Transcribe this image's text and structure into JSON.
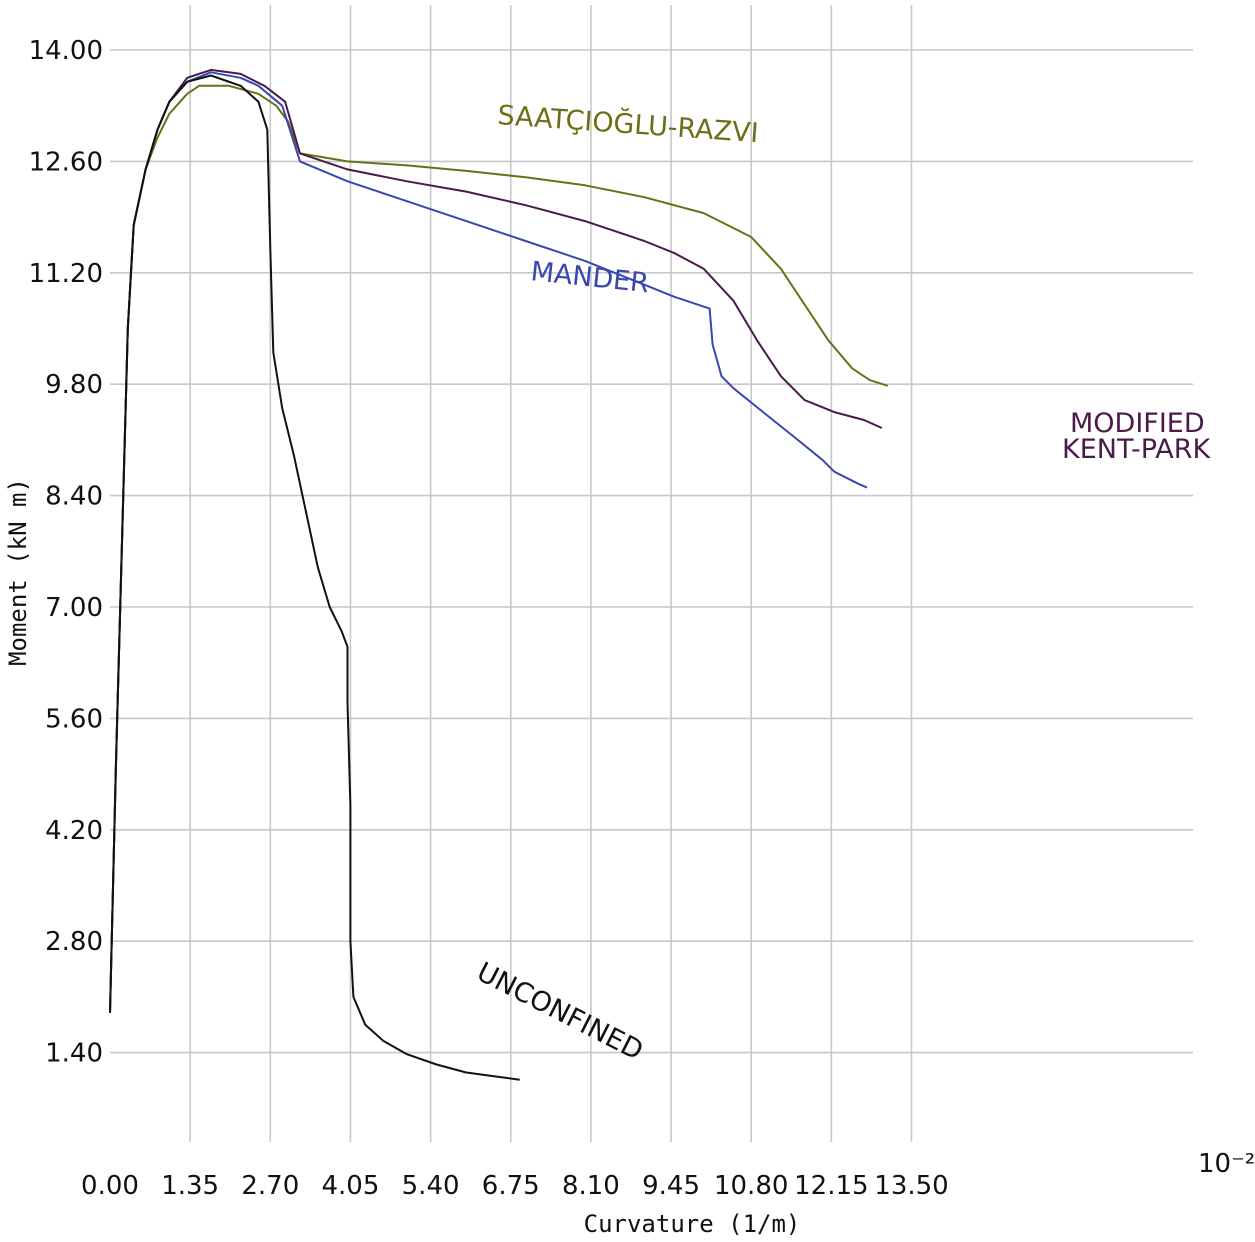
{
  "chart_data": {
    "type": "line",
    "xlabel": "Curvature (1/m)",
    "ylabel": "Moment (kN m)",
    "x_multiplier": "10⁻²",
    "xlim": [
      0,
      13.5
    ],
    "ylim": [
      0,
      14
    ],
    "grid": true,
    "x_ticks": [
      "0.00",
      "1.35",
      "2.70",
      "4.05",
      "5.40",
      "6.75",
      "8.10",
      "9.45",
      "10.80",
      "12.15",
      "13.50"
    ],
    "y_ticks": [
      "1.40",
      "2.80",
      "4.20",
      "5.60",
      "7.00",
      "8.40",
      "9.80",
      "11.20",
      "12.60",
      "14.00"
    ],
    "series": [
      {
        "name": "SAATÇIOĞLU-RAZVI",
        "color": "#6e6e16",
        "points": [
          [
            0,
            1.9
          ],
          [
            0.1,
            5.0
          ],
          [
            0.3,
            10.5
          ],
          [
            0.4,
            11.8
          ],
          [
            0.6,
            12.5
          ],
          [
            0.8,
            12.9
          ],
          [
            1.0,
            13.2
          ],
          [
            1.3,
            13.45
          ],
          [
            1.5,
            13.55
          ],
          [
            2.0,
            13.55
          ],
          [
            2.5,
            13.45
          ],
          [
            2.8,
            13.3
          ],
          [
            3.0,
            13.1
          ],
          [
            3.2,
            12.7
          ],
          [
            4.0,
            12.6
          ],
          [
            5.0,
            12.55
          ],
          [
            6.0,
            12.48
          ],
          [
            7.0,
            12.4
          ],
          [
            8.0,
            12.3
          ],
          [
            9.0,
            12.15
          ],
          [
            10.0,
            11.95
          ],
          [
            10.8,
            11.65
          ],
          [
            11.3,
            11.25
          ],
          [
            11.7,
            10.8
          ],
          [
            12.1,
            10.35
          ],
          [
            12.5,
            10.0
          ],
          [
            12.8,
            9.85
          ],
          [
            13.1,
            9.78
          ]
        ]
      },
      {
        "name": "MODIFIED KENT-PARK",
        "color": "#4a1a4a",
        "points": [
          [
            0,
            1.9
          ],
          [
            0.1,
            5.0
          ],
          [
            0.3,
            10.5
          ],
          [
            0.4,
            11.8
          ],
          [
            0.6,
            12.5
          ],
          [
            0.8,
            13.0
          ],
          [
            1.0,
            13.35
          ],
          [
            1.3,
            13.65
          ],
          [
            1.7,
            13.75
          ],
          [
            2.2,
            13.7
          ],
          [
            2.6,
            13.55
          ],
          [
            2.95,
            13.35
          ],
          [
            3.2,
            12.7
          ],
          [
            4.0,
            12.5
          ],
          [
            5.0,
            12.35
          ],
          [
            6.0,
            12.22
          ],
          [
            7.0,
            12.05
          ],
          [
            8.0,
            11.85
          ],
          [
            9.0,
            11.6
          ],
          [
            9.5,
            11.45
          ],
          [
            10.0,
            11.25
          ],
          [
            10.5,
            10.85
          ],
          [
            10.9,
            10.35
          ],
          [
            11.3,
            9.9
          ],
          [
            11.7,
            9.6
          ],
          [
            12.2,
            9.45
          ],
          [
            12.7,
            9.35
          ],
          [
            13.0,
            9.25
          ]
        ]
      },
      {
        "name": "MANDER",
        "color": "#3848b0",
        "points": [
          [
            0,
            1.9
          ],
          [
            0.1,
            5.0
          ],
          [
            0.3,
            10.5
          ],
          [
            0.4,
            11.8
          ],
          [
            0.6,
            12.5
          ],
          [
            0.8,
            13.0
          ],
          [
            1.0,
            13.35
          ],
          [
            1.3,
            13.6
          ],
          [
            1.7,
            13.72
          ],
          [
            2.2,
            13.65
          ],
          [
            2.5,
            13.55
          ],
          [
            2.9,
            13.3
          ],
          [
            3.2,
            12.6
          ],
          [
            4.0,
            12.35
          ],
          [
            5.0,
            12.1
          ],
          [
            6.0,
            11.85
          ],
          [
            7.0,
            11.6
          ],
          [
            8.0,
            11.35
          ],
          [
            8.5,
            11.2
          ],
          [
            9.0,
            11.05
          ],
          [
            9.5,
            10.9
          ],
          [
            10.1,
            10.75
          ],
          [
            10.15,
            10.3
          ],
          [
            10.3,
            9.9
          ],
          [
            10.5,
            9.75
          ],
          [
            11.0,
            9.45
          ],
          [
            11.5,
            9.15
          ],
          [
            12.0,
            8.85
          ],
          [
            12.2,
            8.7
          ],
          [
            12.6,
            8.55
          ],
          [
            12.75,
            8.5
          ]
        ]
      },
      {
        "name": "UNCONFINED",
        "color": "#111111",
        "points": [
          [
            0,
            1.9
          ],
          [
            0.1,
            5.0
          ],
          [
            0.3,
            10.5
          ],
          [
            0.4,
            11.8
          ],
          [
            0.6,
            12.5
          ],
          [
            0.8,
            13.0
          ],
          [
            1.0,
            13.35
          ],
          [
            1.3,
            13.6
          ],
          [
            1.7,
            13.68
          ],
          [
            2.2,
            13.55
          ],
          [
            2.5,
            13.35
          ],
          [
            2.65,
            13.0
          ],
          [
            2.7,
            11.5
          ],
          [
            2.75,
            10.2
          ],
          [
            2.9,
            9.5
          ],
          [
            3.1,
            8.9
          ],
          [
            3.3,
            8.2
          ],
          [
            3.5,
            7.5
          ],
          [
            3.7,
            7.0
          ],
          [
            3.9,
            6.7
          ],
          [
            4.0,
            6.5
          ],
          [
            4.0,
            5.8
          ],
          [
            4.05,
            4.5
          ],
          [
            4.05,
            2.8
          ],
          [
            4.1,
            2.1
          ],
          [
            4.3,
            1.75
          ],
          [
            4.6,
            1.55
          ],
          [
            5.0,
            1.38
          ],
          [
            5.5,
            1.25
          ],
          [
            6.0,
            1.15
          ],
          [
            6.5,
            1.1
          ],
          [
            6.9,
            1.06
          ]
        ]
      }
    ],
    "annotations": [
      {
        "text": "SAATÇIOĞLU-RAZVI",
        "color": "#6e6e16"
      },
      {
        "text": "MANDER",
        "color": "#3848b0"
      },
      {
        "text": "MODIFIED",
        "color": "#4a1a4a"
      },
      {
        "text": "KENT-PARK",
        "color": "#4a1a4a"
      },
      {
        "text": "UNCONFINED",
        "color": "#111111"
      }
    ]
  }
}
